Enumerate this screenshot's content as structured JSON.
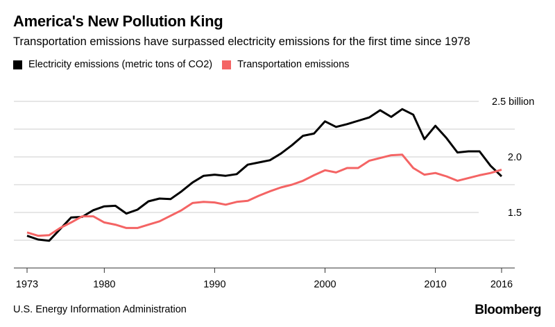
{
  "header": {
    "title": "America's New Pollution King",
    "subtitle": "Transportation emissions have surpassed electricity emissions for the first time since 1978"
  },
  "footer": {
    "source": "U.S. Energy Information Administration",
    "logo": "Bloomberg"
  },
  "colors": {
    "electricity": "#000000",
    "transportation": "#f46464",
    "grid": "#dddddd"
  },
  "chart_data": {
    "type": "line",
    "title": "America's New Pollution King",
    "subtitle": "Transportation emissions have surpassed electricity emissions for the first time since 1978",
    "xlabel": "",
    "ylabel": "",
    "xlim": [
      1973,
      2016
    ],
    "ylim": [
      1.0,
      2.5
    ],
    "x_ticks": [
      1973,
      1980,
      1990,
      2000,
      2010,
      2016
    ],
    "x_tick_labels": [
      "1973",
      "1980",
      "1990",
      "2000",
      "2010",
      "2016"
    ],
    "y_ticks": [
      1.5,
      2.0,
      2.5
    ],
    "y_tick_labels": [
      "1.5",
      "2.0",
      "2.5 billion"
    ],
    "y_gridlines": [
      1.25,
      1.5,
      1.75,
      2.0,
      2.25,
      2.5
    ],
    "grid": true,
    "legend_position": "top-left",
    "x": [
      1973,
      1974,
      1975,
      1976,
      1977,
      1978,
      1979,
      1980,
      1981,
      1982,
      1983,
      1984,
      1985,
      1986,
      1987,
      1988,
      1989,
      1990,
      1991,
      1992,
      1993,
      1994,
      1995,
      1996,
      1997,
      1998,
      1999,
      2000,
      2001,
      2002,
      2003,
      2004,
      2005,
      2006,
      2007,
      2008,
      2009,
      2010,
      2011,
      2012,
      2013,
      2014,
      2015,
      2016
    ],
    "series": [
      {
        "name": "Electricity emissions (metric tons of CO2)",
        "color": "#000000",
        "values": [
          1.29,
          1.256,
          1.245,
          1.35,
          1.455,
          1.46,
          1.52,
          1.555,
          1.56,
          1.49,
          1.525,
          1.6,
          1.625,
          1.62,
          1.69,
          1.77,
          1.83,
          1.84,
          1.83,
          1.845,
          1.93,
          1.95,
          1.97,
          2.03,
          2.105,
          2.19,
          2.21,
          2.32,
          2.27,
          2.295,
          2.325,
          2.355,
          2.42,
          2.36,
          2.43,
          2.38,
          2.16,
          2.28,
          2.17,
          2.04,
          2.05,
          2.05,
          1.92,
          1.825
        ]
      },
      {
        "name": "Transportation emissions",
        "color": "#f46464",
        "values": [
          1.32,
          1.29,
          1.295,
          1.36,
          1.41,
          1.465,
          1.465,
          1.41,
          1.39,
          1.36,
          1.36,
          1.39,
          1.42,
          1.47,
          1.52,
          1.585,
          1.595,
          1.59,
          1.57,
          1.595,
          1.605,
          1.65,
          1.69,
          1.725,
          1.75,
          1.785,
          1.835,
          1.88,
          1.86,
          1.9,
          1.9,
          1.965,
          1.99,
          2.015,
          2.02,
          1.9,
          1.84,
          1.855,
          1.825,
          1.785,
          1.81,
          1.835,
          1.855,
          1.885
        ]
      }
    ]
  }
}
